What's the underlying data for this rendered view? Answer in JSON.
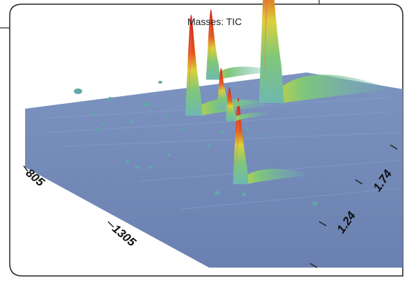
{
  "chart_data": {
    "type": "surface",
    "title": "Masses:  TIC",
    "x_ticks": [
      "805",
      "1305"
    ],
    "y_ticks": [
      "1.24",
      "1.74"
    ],
    "grid": false,
    "colors": {
      "surface_base": "#6f86b4",
      "low": "#6fb8b0",
      "mid": "#d9d23a",
      "high": "#d42020",
      "peak_dark": "#7a0d0d"
    },
    "peaks": [
      {
        "x": 1430,
        "y": 1.38,
        "height": 1.0
      },
      {
        "x": 1160,
        "y": 1.29,
        "height": 0.55
      },
      {
        "x": 1010,
        "y": 1.41,
        "height": 0.38
      },
      {
        "x": 1840,
        "y": 1.12,
        "height": 0.47
      },
      {
        "x": 1255,
        "y": 1.33,
        "height": 0.22
      },
      {
        "x": 1375,
        "y": 1.3,
        "height": 0.18
      }
    ]
  }
}
